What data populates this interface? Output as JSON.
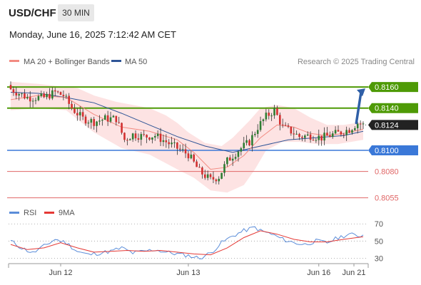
{
  "header": {
    "symbol": "USD/CHF",
    "timeframe": "30 MIN",
    "datetime": "Monday, June 16, 2025 7:12:42 AM CET"
  },
  "colors": {
    "up": "#2e7d32",
    "down": "#d32f2f",
    "ma20": "#f28b82",
    "ma50": "#2f5597",
    "band_fill": "#fddede",
    "resistance": "#4e9a06",
    "support_blue": "#3a78d8",
    "support_red": "#e06666",
    "rsi": "#5b8dd9",
    "rsi_ma": "#e53935",
    "arrow": "#2f5fa7"
  },
  "chart_data": [
    {
      "type": "candlestick",
      "title": "",
      "legend": [
        {
          "name": "MA 20 + Bollinger Bands",
          "color": "#f28b82"
        },
        {
          "name": "MA 50",
          "color": "#2f5597"
        }
      ],
      "legend_position": "top-left",
      "watermark": "Research © 2025 Trading Central",
      "ylim": [
        0.805,
        0.8179
      ],
      "x_ticks": [
        "Jun 12",
        "Jun 13",
        "Jun 16",
        "Jun 21"
      ],
      "x_tick_index": [
        18,
        64,
        111,
        127
      ],
      "bar_count": 128,
      "levels": [
        {
          "value": 0.816,
          "label": "0.8160",
          "kind": "resistance"
        },
        {
          "value": 0.814,
          "label": "0.8140",
          "kind": "resistance"
        },
        {
          "value": 0.81,
          "label": "0.8100",
          "kind": "support_blue"
        },
        {
          "value": 0.808,
          "label": "0.8080",
          "kind": "support_red"
        },
        {
          "value": 0.8055,
          "label": "0.8055",
          "kind": "support_red"
        }
      ],
      "last_price": {
        "value": 0.8124,
        "label": "0.8124"
      },
      "arrow": {
        "from": [
          124,
          0.8126
        ],
        "to": [
          134,
          0.816
        ]
      },
      "close_path": [
        [
          0,
          0.8158
        ],
        [
          6,
          0.815
        ],
        [
          12,
          0.815
        ],
        [
          16,
          0.8155
        ],
        [
          19,
          0.8152
        ],
        [
          22,
          0.814
        ],
        [
          26,
          0.813
        ],
        [
          30,
          0.8127
        ],
        [
          34,
          0.813
        ],
        [
          38,
          0.813
        ],
        [
          41,
          0.811
        ],
        [
          44,
          0.8115
        ],
        [
          48,
          0.8113
        ],
        [
          52,
          0.8114
        ],
        [
          56,
          0.8108
        ],
        [
          60,
          0.8102
        ],
        [
          64,
          0.8096
        ],
        [
          68,
          0.808
        ],
        [
          72,
          0.8072
        ],
        [
          75,
          0.8075
        ],
        [
          78,
          0.809
        ],
        [
          82,
          0.81
        ],
        [
          86,
          0.8108
        ],
        [
          89,
          0.8122
        ],
        [
          92,
          0.8132
        ],
        [
          95,
          0.8138
        ],
        [
          98,
          0.8122
        ],
        [
          101,
          0.8118
        ],
        [
          104,
          0.8113
        ],
        [
          108,
          0.8114
        ],
        [
          112,
          0.8112
        ],
        [
          116,
          0.8115
        ],
        [
          119,
          0.8117
        ],
        [
          122,
          0.812
        ],
        [
          125,
          0.8126
        ],
        [
          127,
          0.8124
        ]
      ],
      "ma20_path": [
        [
          0,
          0.8148
        ],
        [
          10,
          0.8152
        ],
        [
          20,
          0.815
        ],
        [
          30,
          0.8134
        ],
        [
          40,
          0.8122
        ],
        [
          50,
          0.8118
        ],
        [
          60,
          0.811
        ],
        [
          66,
          0.8098
        ],
        [
          72,
          0.8082
        ],
        [
          78,
          0.8084
        ],
        [
          84,
          0.8095
        ],
        [
          90,
          0.8112
        ],
        [
          96,
          0.8124
        ],
        [
          102,
          0.8122
        ],
        [
          108,
          0.8116
        ],
        [
          114,
          0.8114
        ],
        [
          120,
          0.8116
        ],
        [
          127,
          0.812
        ]
      ],
      "band_upper": [
        [
          0,
          0.8165
        ],
        [
          10,
          0.8163
        ],
        [
          20,
          0.816
        ],
        [
          24,
          0.8159
        ],
        [
          30,
          0.8152
        ],
        [
          38,
          0.8146
        ],
        [
          44,
          0.8143
        ],
        [
          50,
          0.814
        ],
        [
          56,
          0.8133
        ],
        [
          60,
          0.8126
        ],
        [
          64,
          0.8117
        ],
        [
          70,
          0.8107
        ],
        [
          76,
          0.8104
        ],
        [
          80,
          0.8112
        ],
        [
          86,
          0.8128
        ],
        [
          90,
          0.814
        ],
        [
          96,
          0.8143
        ],
        [
          102,
          0.814
        ],
        [
          108,
          0.8131
        ],
        [
          114,
          0.8124
        ],
        [
          120,
          0.8124
        ],
        [
          127,
          0.8127
        ]
      ],
      "band_lower": [
        [
          0,
          0.8138
        ],
        [
          10,
          0.814
        ],
        [
          20,
          0.8138
        ],
        [
          30,
          0.8117
        ],
        [
          40,
          0.8102
        ],
        [
          50,
          0.8096
        ],
        [
          60,
          0.8082
        ],
        [
          66,
          0.8074
        ],
        [
          72,
          0.8062
        ],
        [
          78,
          0.806
        ],
        [
          84,
          0.8067
        ],
        [
          88,
          0.8082
        ],
        [
          92,
          0.81
        ],
        [
          98,
          0.8108
        ],
        [
          104,
          0.8108
        ],
        [
          110,
          0.8106
        ],
        [
          118,
          0.8106
        ],
        [
          127,
          0.811
        ]
      ],
      "ma50_path": [
        [
          0,
          0.8155
        ],
        [
          10,
          0.8154
        ],
        [
          20,
          0.815
        ],
        [
          30,
          0.8145
        ],
        [
          40,
          0.8135
        ],
        [
          50,
          0.8124
        ],
        [
          60,
          0.8113
        ],
        [
          70,
          0.8104
        ],
        [
          80,
          0.8098
        ],
        [
          90,
          0.8104
        ],
        [
          100,
          0.811
        ],
        [
          110,
          0.8112
        ],
        [
          120,
          0.8114
        ],
        [
          127,
          0.8118
        ]
      ]
    },
    {
      "type": "line",
      "title": "",
      "legend": [
        {
          "name": "RSI",
          "color": "#5b8dd9"
        },
        {
          "name": "9MA",
          "color": "#e53935"
        }
      ],
      "legend_position": "top-left",
      "ylim": [
        22,
        76
      ],
      "y_ticks": [
        {
          "value": 70,
          "label": "70"
        },
        {
          "value": 50,
          "label": "50"
        },
        {
          "value": 30,
          "label": "30"
        }
      ],
      "rsi_path": [
        [
          0,
          50
        ],
        [
          4,
          42
        ],
        [
          8,
          36
        ],
        [
          12,
          44
        ],
        [
          16,
          52
        ],
        [
          20,
          48
        ],
        [
          24,
          38
        ],
        [
          28,
          34
        ],
        [
          32,
          36
        ],
        [
          36,
          38
        ],
        [
          40,
          42
        ],
        [
          44,
          36
        ],
        [
          48,
          38
        ],
        [
          52,
          40
        ],
        [
          56,
          37
        ],
        [
          60,
          35
        ],
        [
          64,
          33
        ],
        [
          68,
          30
        ],
        [
          72,
          36
        ],
        [
          76,
          48
        ],
        [
          80,
          56
        ],
        [
          84,
          62
        ],
        [
          88,
          66
        ],
        [
          90,
          62
        ],
        [
          94,
          58
        ],
        [
          98,
          52
        ],
        [
          102,
          48
        ],
        [
          106,
          46
        ],
        [
          110,
          50
        ],
        [
          114,
          48
        ],
        [
          118,
          54
        ],
        [
          122,
          58
        ],
        [
          125,
          56
        ],
        [
          127,
          57
        ]
      ],
      "rsi_ma_path": [
        [
          0,
          46
        ],
        [
          6,
          40
        ],
        [
          12,
          42
        ],
        [
          18,
          48
        ],
        [
          24,
          42
        ],
        [
          30,
          37
        ],
        [
          36,
          38
        ],
        [
          42,
          39
        ],
        [
          48,
          38
        ],
        [
          54,
          39
        ],
        [
          60,
          37
        ],
        [
          66,
          35
        ],
        [
          72,
          34
        ],
        [
          78,
          42
        ],
        [
          84,
          54
        ],
        [
          90,
          62
        ],
        [
          96,
          58
        ],
        [
          102,
          52
        ],
        [
          108,
          49
        ],
        [
          114,
          49
        ],
        [
          120,
          52
        ],
        [
          127,
          55
        ]
      ]
    }
  ]
}
